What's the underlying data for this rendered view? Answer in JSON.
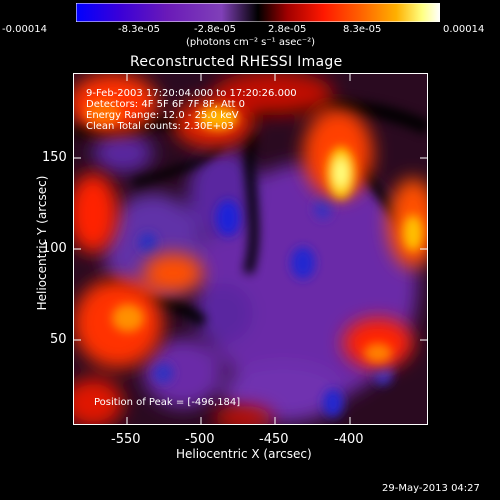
{
  "colorbar": {
    "ticks": [
      "-0.00014",
      "-8.3e-05",
      "-2.8e-05",
      "2.8e-05",
      "8.3e-05",
      "0.00014"
    ],
    "units": "(photons cm⁻² s⁻¹ asec⁻²)",
    "colors": [
      "#0000ff",
      "#3a00c8",
      "#6a2aa8",
      "#8a3ab0",
      "#000000",
      "#c00000",
      "#ff2000",
      "#ff6a00",
      "#ffb000",
      "#ffff60",
      "#ffffff"
    ]
  },
  "plot": {
    "title": "Reconstructed RHESSI Image",
    "info": [
      "9-Feb-2003 17:20:04.000 to 17:20:26.000",
      "Detectors: 4F 5F 6F 7F 8F, Att 0",
      "Energy Range: 12.0 - 25.0 keV",
      "Clean     Total counts: 2.30E+03"
    ],
    "xlabel": "Heliocentric X (arcsec)",
    "ylabel": "Heliocentric Y (arcsec)",
    "xticks": [
      "-550",
      "-500",
      "-450",
      "-400"
    ],
    "yticks": [
      "150",
      "100",
      "50"
    ],
    "peak_label": "Position of Peak = [-496,184]",
    "footer_date": "29-May-2013 04:27"
  }
}
